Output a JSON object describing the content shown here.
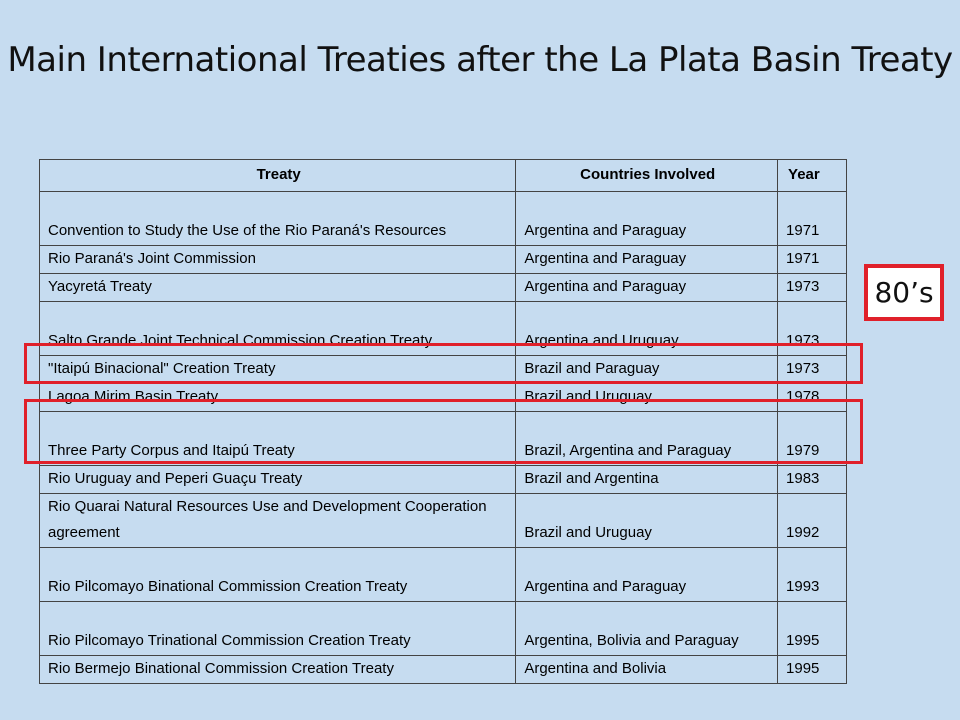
{
  "title": "Main International Treaties after the La Plata Basin Treaty",
  "table": {
    "headers": [
      "Treaty",
      "Countries Involved",
      "Year"
    ],
    "rows": [
      {
        "treaty": "Convention to Study the Use of the Rio Paraná's Resources",
        "countries": "Argentina and Paraguay",
        "year": "1971"
      },
      {
        "treaty": "Rio Paraná's Joint Commission",
        "countries": "Argentina and Paraguay",
        "year": "1971"
      },
      {
        "treaty": "Yacyretá Treaty",
        "countries": "Argentina and Paraguay",
        "year": "1973"
      },
      {
        "treaty": "Salto Grande Joint Technical Commission Creation Treaty",
        "countries": "Argentina and Uruguay",
        "year": "1973"
      },
      {
        "treaty": "\"Itaipú Binacional\" Creation Treaty",
        "countries": "Brazil and Paraguay",
        "year": "1973"
      },
      {
        "treaty": "Lagoa Mirim Basin Treaty",
        "countries": "Brazil and Uruguay",
        "year": "1978"
      },
      {
        "treaty": "Three Party Corpus and Itaipú Treaty",
        "countries": "Brazil, Argentina and Paraguay",
        "year": "1979"
      },
      {
        "treaty": "Rio Uruguay and Peperi Guaçu Treaty",
        "countries": "Brazil and Argentina",
        "year": "1983"
      },
      {
        "treaty": "Rio Quarai Natural Resources Use and Development Cooperation agreement",
        "countries": "Brazil and Uruguay",
        "year": "1992"
      },
      {
        "treaty": "Rio Pilcomayo Binational Commission Creation Treaty",
        "countries": "Argentina and Paraguay",
        "year": "1993"
      },
      {
        "treaty": "Rio Pilcomayo Trinational Commission Creation Treaty",
        "countries": "Argentina, Bolivia and Paraguay",
        "year": "1995"
      },
      {
        "treaty": "Rio Bermejo Binational Commission Creation Treaty",
        "countries": "Argentina and Bolivia",
        "year": "1995"
      }
    ]
  },
  "callout": "80’s",
  "highlight_color": "#e0202a"
}
